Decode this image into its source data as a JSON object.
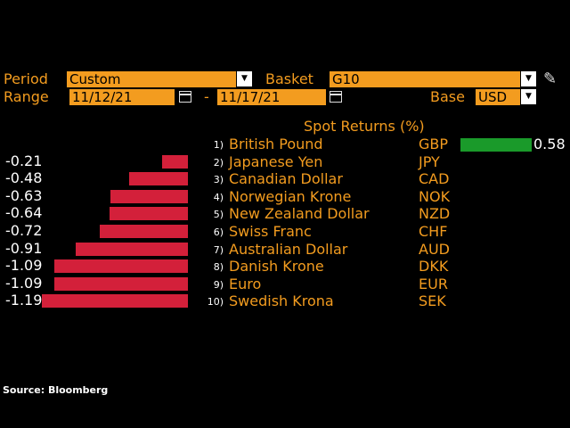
{
  "controls": {
    "period_label": "Period",
    "period_value": "Custom",
    "basket_label": "Basket",
    "basket_value": "G10",
    "range_label": "Range",
    "range_start": "11/12/21",
    "range_sep": "-",
    "range_end": "11/17/21",
    "base_label": "Base",
    "base_value": "USD"
  },
  "chart_header": "Spot Returns (%)",
  "source": "Source: Bloomberg",
  "colors": {
    "accent": "#f39c1f",
    "positive_bar": "#1a9a2a",
    "negative_bar": "#d3203a"
  },
  "icons": [
    "dropdown-arrow-icon",
    "calendar-icon",
    "pencil-icon"
  ],
  "chart_data": {
    "type": "bar",
    "title": "Spot Returns (%)",
    "categories": [
      "British Pound",
      "Japanese Yen",
      "Canadian Dollar",
      "Norwegian Krone",
      "New Zealand Dollar",
      "Swiss Franc",
      "Australian Dollar",
      "Danish Krone",
      "Euro",
      "Swedish Krona"
    ],
    "codes": [
      "GBP",
      "JPY",
      "CAD",
      "NOK",
      "NZD",
      "CHF",
      "AUD",
      "DKK",
      "EUR",
      "SEK"
    ],
    "ranks": [
      "1)",
      "2)",
      "3)",
      "4)",
      "5)",
      "6)",
      "7)",
      "8)",
      "9)",
      "10)"
    ],
    "values": [
      0.58,
      -0.21,
      -0.48,
      -0.63,
      -0.64,
      -0.72,
      -0.91,
      -1.09,
      -1.09,
      -1.19
    ],
    "labels": [
      "0.58",
      "-0.21",
      "-0.48",
      "-0.63",
      "-0.64",
      "-0.72",
      "-0.91",
      "-1.09",
      "-1.09",
      "-1.19"
    ]
  }
}
